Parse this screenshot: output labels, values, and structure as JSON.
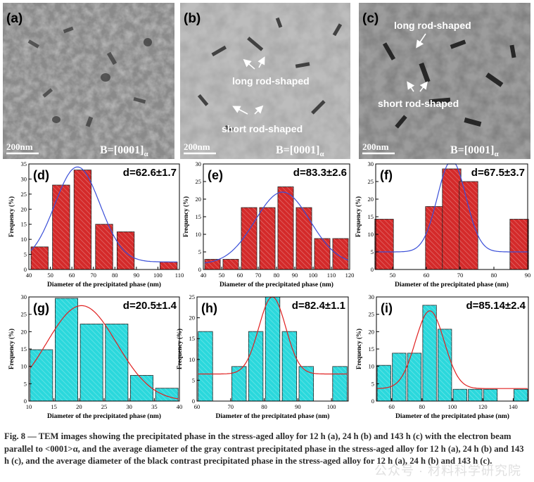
{
  "tem_panels": [
    {
      "label": "(a)",
      "scale": "200nm",
      "orientation": "B=[0001]",
      "orientation_sub": "α",
      "annotations": []
    },
    {
      "label": "(b)",
      "scale": "200nm",
      "orientation": "B=[0001]",
      "orientation_sub": "α",
      "annotations": [
        "long rod-shaped",
        "short rod-shaped"
      ]
    },
    {
      "label": "(c)",
      "scale": "200nm",
      "orientation": "B=[0001]",
      "orientation_sub": "α",
      "annotations": [
        "long rod-shaped",
        "short rod-shaped"
      ]
    }
  ],
  "chart_data": [
    {
      "type": "bar",
      "panel": "(d)",
      "annotation": "d=62.6±1.7",
      "xlabel": "Diameter of the precipitated phase (nm)",
      "ylabel": "Frequency (%)",
      "xlim": [
        40,
        110
      ],
      "ylim": [
        0,
        35
      ],
      "xticks": [
        40,
        50,
        60,
        70,
        80,
        90,
        100,
        110
      ],
      "yticks": [
        0,
        5,
        10,
        15,
        20,
        25,
        30,
        35
      ],
      "bar_width": 8,
      "centers": [
        45,
        55,
        65,
        75,
        85,
        105
      ],
      "values": [
        7.5,
        28,
        33,
        15,
        12.5,
        2.5
      ],
      "fit_curve": {
        "center": 62.6,
        "amplitude": 34,
        "sigma": 10.5,
        "baseline": 2.5
      },
      "bar_color": "#d42a2a",
      "fit_color": "#3a4fd8"
    },
    {
      "type": "bar",
      "panel": "(e)",
      "annotation": "d=83.3±2.6",
      "xlabel": "Diameter of the precipitated phase (nm)",
      "ylabel": "Frequency (%)",
      "xlim": [
        40,
        120
      ],
      "ylim": [
        0,
        30
      ],
      "xticks": [
        40,
        50,
        60,
        70,
        80,
        90,
        100,
        110,
        120
      ],
      "yticks": [
        0,
        5,
        10,
        15,
        20,
        25,
        30
      ],
      "bar_width": 8.5,
      "centers": [
        45,
        55,
        65,
        75,
        85,
        95,
        105,
        115
      ],
      "values": [
        2.9,
        2.9,
        17.6,
        17.6,
        23.5,
        17.6,
        8.8,
        8.8
      ],
      "fit_curve": {
        "center": 83.3,
        "amplitude": 22,
        "sigma": 15,
        "baseline": 1.5
      },
      "bar_color": "#d42a2a",
      "fit_color": "#3a4fd8"
    },
    {
      "type": "bar",
      "panel": "(f)",
      "annotation": "d=67.5±3.7",
      "xlabel": "Diameter of the precipitated phase (nm)",
      "ylabel": "Frequency (%)",
      "xlim": [
        45,
        90
      ],
      "ylim": [
        0,
        30
      ],
      "xticks": [
        50,
        60,
        70,
        80,
        90
      ],
      "yticks": [
        0,
        5,
        10,
        15,
        20,
        25,
        30
      ],
      "bar_width": 5.5,
      "centers": [
        47.5,
        62.5,
        67.5,
        72.5,
        87.5
      ],
      "values": [
        14.3,
        17.9,
        28.6,
        25,
        14.3
      ],
      "fit_curve": {
        "center": 67.5,
        "amplitude": 31,
        "sigma": 4.2,
        "baseline": 5
      },
      "bar_color": "#d42a2a",
      "fit_color": "#3a4fd8"
    },
    {
      "type": "bar",
      "panel": "(g)",
      "annotation": "d=20.5±1.4",
      "xlabel": "Diameter of the precipitated phase (nm)",
      "ylabel": "Frequency (%)",
      "xlim": [
        10,
        40
      ],
      "ylim": [
        0,
        30
      ],
      "xticks": [
        10,
        15,
        20,
        25,
        30,
        35,
        40
      ],
      "yticks": [
        0,
        5,
        10,
        15,
        20,
        25,
        30
      ],
      "bar_width": 4.5,
      "centers": [
        12.5,
        17.5,
        22.5,
        27.5,
        32.5,
        37.5
      ],
      "values": [
        14.8,
        29.6,
        22.2,
        22.2,
        7.4,
        3.7
      ],
      "fit_curve": {
        "center": 20.5,
        "amplitude": 27.5,
        "sigma": 7,
        "baseline": 0
      },
      "bar_color": "#2bd8dc",
      "fit_color": "#e02020"
    },
    {
      "type": "bar",
      "panel": "(h)",
      "annotation": "d=82.4±1.1",
      "xlabel": "Diameter of the precipitated phase (nm)",
      "ylabel": "Frequency (%)",
      "xlim": [
        60,
        105
      ],
      "ylim": [
        0,
        25
      ],
      "xticks": [
        60,
        70,
        80,
        90,
        100
      ],
      "yticks": [
        0,
        5,
        10,
        15,
        20,
        25
      ],
      "bar_width": 4.3,
      "centers": [
        62.5,
        72.5,
        77.5,
        82.5,
        87.5,
        92.5,
        102.5
      ],
      "values": [
        16.7,
        8.3,
        16.7,
        25,
        16.7,
        8.3,
        8.3
      ],
      "fit_curve": {
        "center": 82.4,
        "amplitude": 25,
        "sigma": 4,
        "baseline": 6.5
      },
      "bar_color": "#2bd8dc",
      "fit_color": "#e02020"
    },
    {
      "type": "bar",
      "panel": "(i)",
      "annotation": "d=85.14±2.4",
      "xlabel": "Diameter of the precipitated phase (nm)",
      "ylabel": "Frequency (%)",
      "xlim": [
        50,
        150
      ],
      "ylim": [
        0,
        30
      ],
      "xticks": [
        60,
        80,
        100,
        120,
        140
      ],
      "yticks": [
        0,
        5,
        10,
        15,
        20,
        25,
        30
      ],
      "bar_width": 9,
      "centers": [
        55,
        65,
        75,
        85,
        95,
        105,
        115,
        125,
        145
      ],
      "values": [
        10.3,
        13.8,
        13.8,
        27.6,
        20.7,
        3.4,
        3.4,
        3.4,
        3.4
      ],
      "fit_curve": {
        "center": 85.14,
        "amplitude": 26,
        "sigma": 9.5,
        "baseline": 3.6
      },
      "bar_color": "#2bd8dc",
      "fit_color": "#e02020"
    }
  ],
  "caption": "Fig. 8 — TEM images showing the precipitated phase in the stress-aged alloy for 12 h (a), 24 h (b) and 143 h (c) with the electron beam parallel to <0001>α, and the average diameter of the gray contrast precipitated phase in the stress-aged alloy for 12 h (a), 24 h (b) and 143 h (c), and the average diameter of the black contrast precipitated phase in the stress-aged alloy for 12 h (a), 24 h (b) and 143 h (c).",
  "watermark": "公众号 · 材料科学研究院"
}
